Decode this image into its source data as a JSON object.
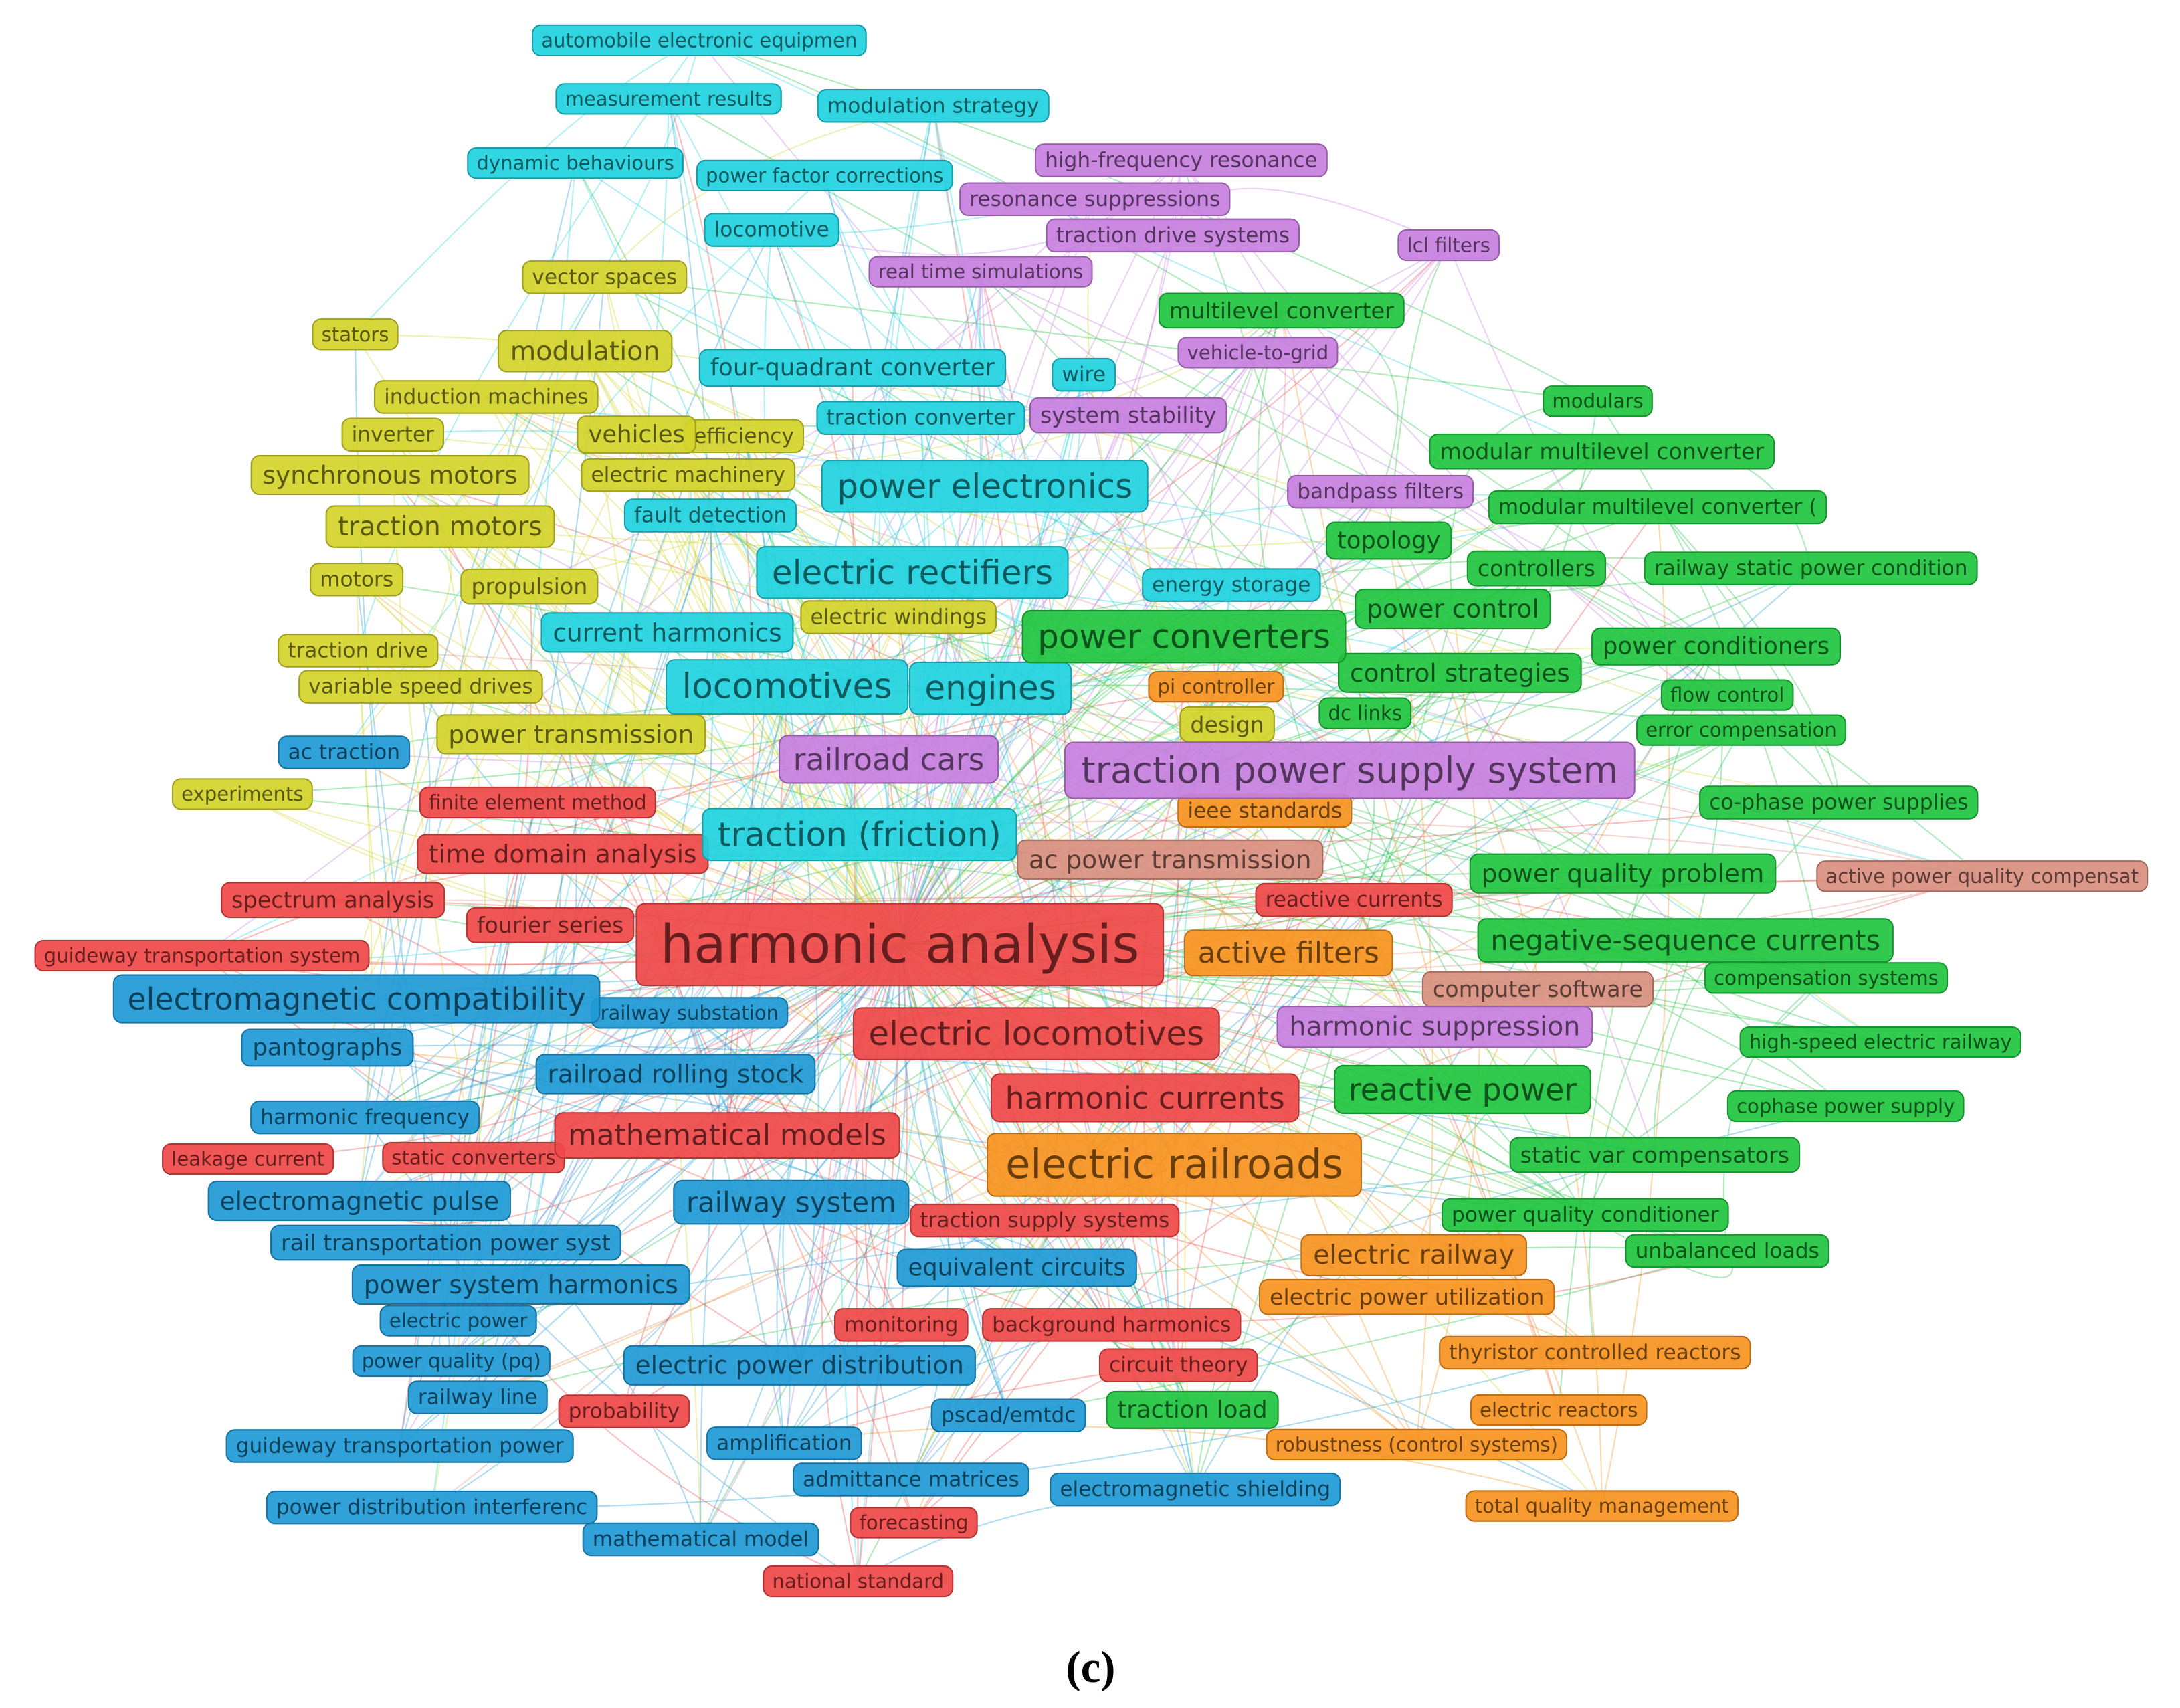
{
  "nodes": [
    {
      "label": "automobile electronic equipmen",
      "color": "#1fd3e0"
    },
    {
      "label": "measurement results",
      "color": "#1fd3e0"
    },
    {
      "label": "modulation strategy",
      "color": "#1fd3e0"
    },
    {
      "label": "dynamic behaviours",
      "color": "#1fd3e0"
    },
    {
      "label": "power factor corrections",
      "color": "#1fd3e0"
    },
    {
      "label": "locomotive",
      "color": "#1fd3e0"
    },
    {
      "label": "four-quadrant converter",
      "color": "#1fd3e0"
    },
    {
      "label": "wire",
      "color": "#1fd3e0"
    },
    {
      "label": "traction converter",
      "color": "#1fd3e0"
    },
    {
      "label": "power electronics",
      "color": "#1fd3e0"
    },
    {
      "label": "fault detection",
      "color": "#1fd3e0"
    },
    {
      "label": "electric rectifiers",
      "color": "#1fd3e0"
    },
    {
      "label": "energy storage",
      "color": "#1fd3e0"
    },
    {
      "label": "current harmonics",
      "color": "#1fd3e0"
    },
    {
      "label": "engines",
      "color": "#1fd3e0"
    },
    {
      "label": "locomotives",
      "color": "#1fd3e0"
    },
    {
      "label": "traction (friction)",
      "color": "#1fd3e0"
    },
    {
      "label": "high-frequency resonance",
      "color": "#c77fe0"
    },
    {
      "label": "resonance suppressions",
      "color": "#c77fe0"
    },
    {
      "label": "traction drive systems",
      "color": "#c77fe0"
    },
    {
      "label": "real time simulations",
      "color": "#c77fe0"
    },
    {
      "label": "lcl filters",
      "color": "#c77fe0"
    },
    {
      "label": "vehicle-to-grid",
      "color": "#c77fe0"
    },
    {
      "label": "system stability",
      "color": "#c77fe0"
    },
    {
      "label": "bandpass filters",
      "color": "#c77fe0"
    },
    {
      "label": "railroad cars",
      "color": "#c77fe0"
    },
    {
      "label": "traction power supply system",
      "color": "#c77fe0"
    },
    {
      "label": "harmonic suppression",
      "color": "#c77fe0"
    },
    {
      "label": "vector spaces",
      "color": "#d4d42a"
    },
    {
      "label": "stators",
      "color": "#d4d42a"
    },
    {
      "label": "modulation",
      "color": "#d4d42a"
    },
    {
      "label": "induction machines",
      "color": "#d4d42a"
    },
    {
      "label": "inverter",
      "color": "#d4d42a"
    },
    {
      "label": "efficiency",
      "color": "#d4d42a"
    },
    {
      "label": "vehicles",
      "color": "#d4d42a"
    },
    {
      "label": "synchronous motors",
      "color": "#d4d42a"
    },
    {
      "label": "electric machinery",
      "color": "#d4d42a"
    },
    {
      "label": "traction motors",
      "color": "#d4d42a"
    },
    {
      "label": "motors",
      "color": "#d4d42a"
    },
    {
      "label": "propulsion",
      "color": "#d4d42a"
    },
    {
      "label": "electric windings",
      "color": "#d4d42a"
    },
    {
      "label": "traction drive",
      "color": "#d4d42a"
    },
    {
      "label": "variable speed drives",
      "color": "#d4d42a"
    },
    {
      "label": "power transmission",
      "color": "#d4d42a"
    },
    {
      "label": "design",
      "color": "#d4d42a"
    },
    {
      "label": "experiments",
      "color": "#d4d42a"
    },
    {
      "label": "multilevel converter",
      "color": "#1fc43f"
    },
    {
      "label": "modulars",
      "color": "#1fc43f"
    },
    {
      "label": "modular multilevel converter",
      "color": "#1fc43f"
    },
    {
      "label": "modular multilevel converter (",
      "color": "#1fc43f"
    },
    {
      "label": "topology",
      "color": "#1fc43f"
    },
    {
      "label": "controllers",
      "color": "#1fc43f"
    },
    {
      "label": "railway static power condition",
      "color": "#1fc43f"
    },
    {
      "label": "power control",
      "color": "#1fc43f"
    },
    {
      "label": "power conditioners",
      "color": "#1fc43f"
    },
    {
      "label": "control strategies",
      "color": "#1fc43f"
    },
    {
      "label": "flow control",
      "color": "#1fc43f"
    },
    {
      "label": "dc links",
      "color": "#1fc43f"
    },
    {
      "label": "error compensation",
      "color": "#1fc43f"
    },
    {
      "label": "co-phase power supplies",
      "color": "#1fc43f"
    },
    {
      "label": "power quality problem",
      "color": "#1fc43f"
    },
    {
      "label": "negative-sequence currents",
      "color": "#1fc43f"
    },
    {
      "label": "compensation systems",
      "color": "#1fc43f"
    },
    {
      "label": "high-speed electric railway",
      "color": "#1fc43f"
    },
    {
      "label": "reactive power",
      "color": "#1fc43f"
    },
    {
      "label": "cophase power supply",
      "color": "#1fc43f"
    },
    {
      "label": "static var compensators",
      "color": "#1fc43f"
    },
    {
      "label": "power quality conditioner",
      "color": "#1fc43f"
    },
    {
      "label": "unbalanced loads",
      "color": "#1fc43f"
    },
    {
      "label": "power converters",
      "color": "#1fc43f"
    },
    {
      "label": "pi controller",
      "color": "#f7931e"
    },
    {
      "label": "ieee standards",
      "color": "#f7931e"
    },
    {
      "label": "active filters",
      "color": "#f7931e"
    },
    {
      "label": "electric railroads",
      "color": "#f7931e"
    },
    {
      "label": "electric railway",
      "color": "#f7931e"
    },
    {
      "label": "electric power utilization",
      "color": "#f7931e"
    },
    {
      "label": "thyristor controlled reactors",
      "color": "#f7931e"
    },
    {
      "label": "electric reactors",
      "color": "#f7931e"
    },
    {
      "label": "robustness (control systems)",
      "color": "#f7931e"
    },
    {
      "label": "total quality management",
      "color": "#f7931e"
    },
    {
      "label": "ac power transmission",
      "color": "#d99080"
    },
    {
      "label": "active power quality compensat",
      "color": "#d99080"
    },
    {
      "label": "computer software",
      "color": "#d99080"
    },
    {
      "label": "finite element method",
      "color": "#f04848"
    },
    {
      "label": "time domain analysis",
      "color": "#f04848"
    },
    {
      "label": "spectrum analysis",
      "color": "#f04848"
    },
    {
      "label": "fourier series",
      "color": "#f04848"
    },
    {
      "label": "reactive currents",
      "color": "#f04848"
    },
    {
      "label": "guideway transportation system",
      "color": "#f04848"
    },
    {
      "label": "leakage current",
      "color": "#f04848"
    },
    {
      "label": "static converters",
      "color": "#f04848"
    },
    {
      "label": "traction supply systems",
      "color": "#f04848"
    },
    {
      "label": "monitoring",
      "color": "#f04848"
    },
    {
      "label": "background harmonics",
      "color": "#f04848"
    },
    {
      "label": "circuit theory",
      "color": "#f04848"
    },
    {
      "label": "probability",
      "color": "#f04848"
    },
    {
      "label": "forecasting",
      "color": "#f04848"
    },
    {
      "label": "national standard",
      "color": "#f04848"
    },
    {
      "label": "ac traction",
      "color": "#1e9ad6"
    },
    {
      "label": "railway substation",
      "color": "#1e9ad6"
    },
    {
      "label": "pantographs",
      "color": "#1e9ad6"
    },
    {
      "label": "railroad rolling stock",
      "color": "#1e9ad6"
    },
    {
      "label": "harmonic frequency",
      "color": "#1e9ad6"
    },
    {
      "label": "electromagnetic pulse",
      "color": "#1e9ad6"
    },
    {
      "label": "railway system",
      "color": "#1e9ad6"
    },
    {
      "label": "rail transportation power syst",
      "color": "#1e9ad6"
    },
    {
      "label": "power system harmonics",
      "color": "#1e9ad6"
    },
    {
      "label": "equivalent circuits",
      "color": "#1e9ad6"
    },
    {
      "label": "electric power",
      "color": "#1e9ad6"
    },
    {
      "label": "power quality (pq)",
      "color": "#1e9ad6"
    },
    {
      "label": "railway line",
      "color": "#1e9ad6"
    },
    {
      "label": "electric power distribution",
      "color": "#1e9ad6"
    },
    {
      "label": "pscad/emtdc",
      "color": "#1e9ad6"
    },
    {
      "label": "guideway transportation power",
      "color": "#1e9ad6"
    },
    {
      "label": "amplification",
      "color": "#1e9ad6"
    },
    {
      "label": "admittance matrices",
      "color": "#1e9ad6"
    },
    {
      "label": "power distribution interferenc",
      "color": "#1e9ad6"
    },
    {
      "label": "electromagnetic shielding",
      "color": "#1e9ad6"
    },
    {
      "label": "mathematical model",
      "color": "#1e9ad6"
    },
    {
      "label": "electromagnetic compatibility",
      "color": "#1e9ad6"
    },
    {
      "label": "mathematical models",
      "color": "#f04848"
    },
    {
      "label": "harmonic currents",
      "color": "#f04848"
    },
    {
      "label": "electric locomotives",
      "color": "#f04848"
    },
    {
      "label": "traction load",
      "color": "#1fc43f"
    },
    {
      "label": "harmonic analysis",
      "color": "#f04848"
    }
  ],
  "caption": "(c)"
}
